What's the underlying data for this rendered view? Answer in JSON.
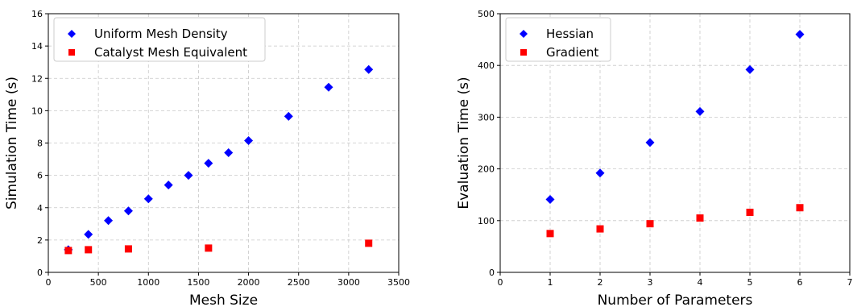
{
  "chart_data": [
    {
      "type": "scatter",
      "xlabel": "Mesh Size",
      "ylabel": "Simulation Time (s)",
      "xlim": [
        0,
        3500
      ],
      "ylim": [
        0,
        16
      ],
      "xticks": [
        0,
        500,
        1000,
        1500,
        2000,
        2500,
        3000,
        3500
      ],
      "yticks": [
        0,
        2,
        4,
        6,
        8,
        10,
        12,
        14,
        16
      ],
      "grid": true,
      "legend_position": "top-left",
      "series": [
        {
          "name": "Uniform Mesh Density",
          "marker": "diamond",
          "color": "#0000ff",
          "x": [
            200,
            400,
            600,
            800,
            1000,
            1200,
            1400,
            1600,
            1800,
            2000,
            2400,
            2800,
            3200
          ],
          "y": [
            1.4,
            2.35,
            3.2,
            3.8,
            4.55,
            5.4,
            6.0,
            6.75,
            7.4,
            8.15,
            9.65,
            11.45,
            12.55
          ]
        },
        {
          "name": "Catalyst Mesh Equivalent",
          "marker": "square",
          "color": "#ff0000",
          "x": [
            200,
            400,
            800,
            1600,
            3200
          ],
          "y": [
            1.35,
            1.4,
            1.45,
            1.5,
            1.8
          ]
        }
      ]
    },
    {
      "type": "scatter",
      "xlabel": "Number of Parameters",
      "ylabel": "Evaluation Time (s)",
      "xlim": [
        0,
        7
      ],
      "ylim": [
        0,
        500
      ],
      "xticks": [
        0,
        1,
        2,
        3,
        4,
        5,
        6,
        7
      ],
      "yticks": [
        0,
        100,
        200,
        300,
        400,
        500
      ],
      "grid": true,
      "legend_position": "top-left",
      "series": [
        {
          "name": "Hessian",
          "marker": "diamond",
          "color": "#0000ff",
          "x": [
            1,
            2,
            3,
            4,
            5,
            6
          ],
          "y": [
            141,
            192,
            251,
            311,
            392,
            460
          ]
        },
        {
          "name": "Gradient",
          "marker": "square",
          "color": "#ff0000",
          "x": [
            1,
            2,
            3,
            4,
            5,
            6
          ],
          "y": [
            75,
            84,
            94,
            105,
            116,
            125
          ]
        }
      ]
    }
  ]
}
